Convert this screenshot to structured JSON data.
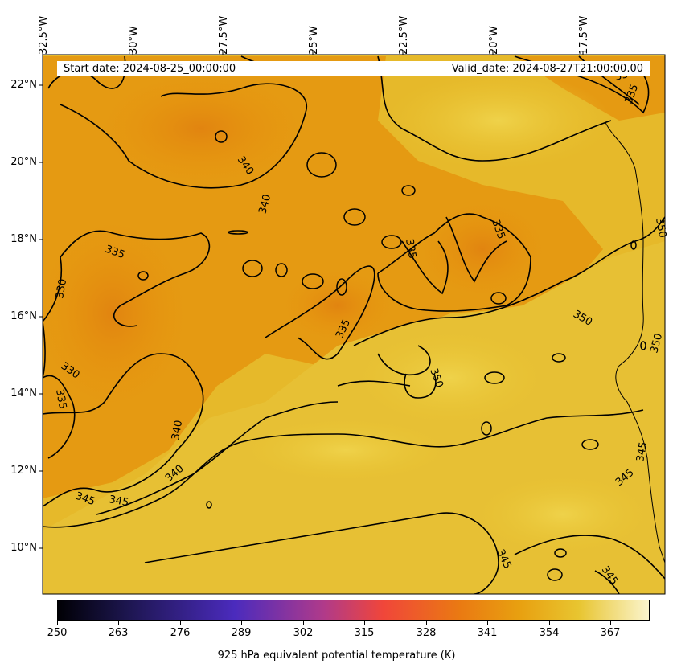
{
  "map": {
    "lon_labels": [
      "32.5°W",
      "30°W",
      "27.5°W",
      "25°W",
      "22.5°W",
      "20°W",
      "17.5°W"
    ],
    "lat_labels": [
      "22°N",
      "20°N",
      "18°N",
      "16°N",
      "14°N",
      "12°N",
      "10°N"
    ],
    "start_date": "Start date: 2024-08-25_00:00:00",
    "valid_date": "Valid_date: 2024-08-27T21:00:00.00",
    "contour_labels": [
      "330",
      "335",
      "340",
      "345",
      "350"
    ],
    "colors": {
      "low": "#000004",
      "purple": "#4b2bbd",
      "red": "#f0463a",
      "orange": "#e8900a",
      "yellow": "#e8c530",
      "pale": "#fbf5cf"
    }
  },
  "colorbar": {
    "ticks": [
      "250",
      "263",
      "276",
      "289",
      "302",
      "315",
      "328",
      "341",
      "354",
      "367"
    ],
    "label": "925 hPa equivalent potential temperature (K)"
  }
}
